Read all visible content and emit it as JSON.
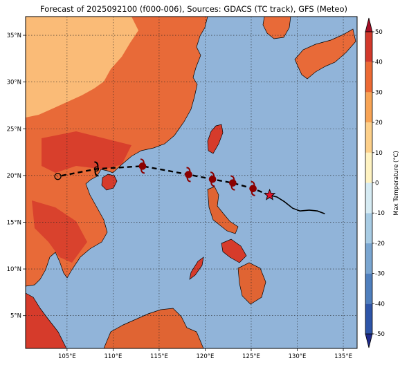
{
  "title": "Forecast of 2025092100 (f000-006), Sources: GDACS (TC track), GFS (Meteo)",
  "map": {
    "lon_range": [
      100.5,
      136.5
    ],
    "lat_range": [
      1.5,
      37.0
    ],
    "lon_ticks": [
      {
        "value": 105,
        "label": "105°E"
      },
      {
        "value": 110,
        "label": "110°E"
      },
      {
        "value": 115,
        "label": "115°E"
      },
      {
        "value": 120,
        "label": "120°E"
      },
      {
        "value": 125,
        "label": "125°E"
      },
      {
        "value": 130,
        "label": "130°E"
      },
      {
        "value": 135,
        "label": "135°E"
      }
    ],
    "lat_ticks": [
      {
        "value": 5,
        "label": "5°N"
      },
      {
        "value": 10,
        "label": "10°N"
      },
      {
        "value": 15,
        "label": "15°N"
      },
      {
        "value": 20,
        "label": "20°N"
      },
      {
        "value": 25,
        "label": "25°N"
      },
      {
        "value": 30,
        "label": "30°N"
      },
      {
        "value": 35,
        "label": "35°N"
      }
    ],
    "gridlines": true,
    "ocean_color": "#91b4d9"
  },
  "track": {
    "observed_color": "#000000",
    "forecast_color": "#000000",
    "symbol_color": "#8b0000",
    "observed": [
      [
        133.0,
        15.9
      ],
      [
        132.2,
        16.2
      ],
      [
        131.3,
        16.3
      ],
      [
        130.3,
        16.2
      ],
      [
        129.5,
        16.5
      ],
      [
        128.6,
        17.2
      ],
      [
        127.8,
        17.7
      ],
      [
        127.0,
        17.9
      ]
    ],
    "current_position": [
      127.0,
      17.9
    ],
    "forecast": [
      [
        127.0,
        17.9
      ],
      [
        125.2,
        18.6
      ],
      [
        123.0,
        19.2
      ],
      [
        120.8,
        19.6
      ],
      [
        118.2,
        20.1
      ],
      [
        113.2,
        21.0
      ],
      [
        108.2,
        20.7
      ],
      [
        104.0,
        19.9
      ]
    ],
    "symbols": [
      {
        "lon": 125.2,
        "lat": 18.6,
        "kind": "typhoon"
      },
      {
        "lon": 123.0,
        "lat": 19.2,
        "kind": "typhoon"
      },
      {
        "lon": 120.8,
        "lat": 19.6,
        "kind": "typhoon"
      },
      {
        "lon": 118.2,
        "lat": 20.1,
        "kind": "typhoon"
      },
      {
        "lon": 113.2,
        "lat": 21.0,
        "kind": "typhoon"
      },
      {
        "lon": 108.2,
        "lat": 20.7,
        "kind": "storm"
      },
      {
        "lon": 104.0,
        "lat": 19.9,
        "kind": "depression"
      }
    ]
  },
  "colorbar": {
    "label": "Max Temperature (°C)",
    "min": -50,
    "max": 50,
    "ticks": [
      "-50",
      "-40",
      "-30",
      "-20",
      "-10",
      "0",
      "10",
      "20",
      "30",
      "40",
      "50"
    ],
    "colors": [
      "#1f2a8a",
      "#2e55a8",
      "#4f7fbd",
      "#7aa6d1",
      "#a8cce4",
      "#d6ebf3",
      "#fff3c2",
      "#fdd08a",
      "#f8a455",
      "#ec6a34",
      "#d2392b",
      "#a50f26"
    ]
  }
}
